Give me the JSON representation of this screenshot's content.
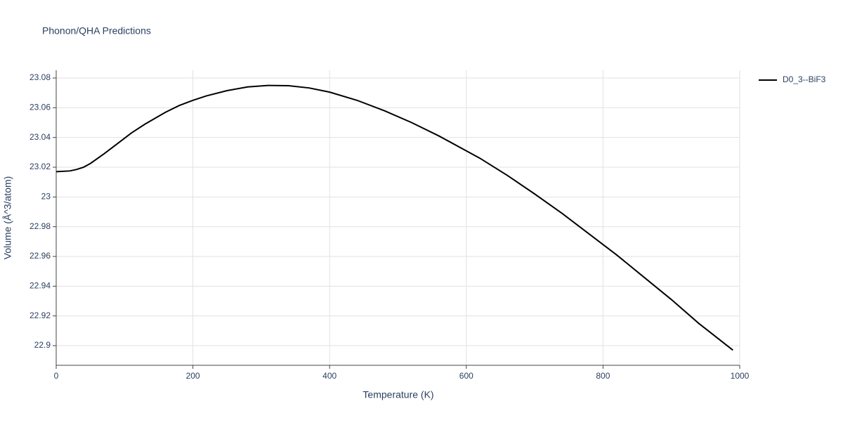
{
  "chart_data": {
    "type": "line",
    "title": "Phonon/QHA Predictions",
    "x_label": "Temperature (K)",
    "y_label": "Volume (Å^3/atom)",
    "x": [
      0,
      20,
      30,
      40,
      50,
      70,
      90,
      110,
      130,
      160,
      180,
      200,
      220,
      250,
      280,
      310,
      340,
      370,
      400,
      440,
      480,
      520,
      560,
      600,
      620,
      660,
      700,
      740,
      780,
      820,
      860,
      900,
      940,
      990
    ],
    "series": [
      {
        "name": "D0_3--BiF3",
        "color": "#000000",
        "values": [
          23.017,
          23.0175,
          23.0185,
          23.02,
          23.0225,
          23.029,
          23.036,
          23.043,
          23.049,
          23.057,
          23.0615,
          23.065,
          23.068,
          23.0715,
          23.074,
          23.075,
          23.0748,
          23.0733,
          23.0705,
          23.065,
          23.058,
          23.05,
          23.041,
          23.031,
          23.026,
          23.0145,
          23.002,
          22.989,
          22.975,
          22.961,
          22.946,
          22.931,
          22.915,
          22.897
        ]
      }
    ],
    "xlim": [
      0,
      1000
    ],
    "xticks": [
      0,
      200,
      400,
      600,
      800,
      1000
    ],
    "ylim": [
      22.8868,
      23.0852
    ],
    "yticks": [
      22.9,
      22.92,
      22.94,
      22.96,
      22.98,
      23,
      23.02,
      23.04,
      23.06,
      23.08
    ],
    "grid": true
  }
}
